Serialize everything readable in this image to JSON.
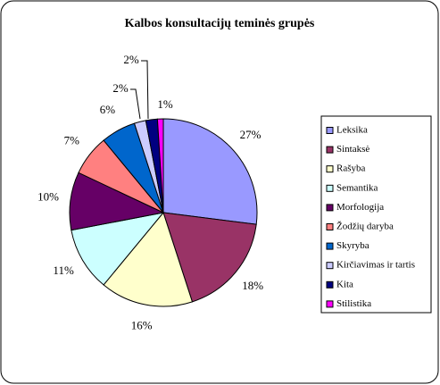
{
  "chart_data": {
    "type": "pie",
    "title": "Kalbos konsultacijų teminės grupės",
    "categories": [
      "Leksika",
      "Sintaksė",
      "Rašyba",
      "Semantika",
      "Morfologija",
      "Žodžių daryba",
      "Skyryba",
      "Kirčiavimas ir tartis",
      "Kita",
      "Stilistika"
    ],
    "values": [
      27,
      18,
      16,
      11,
      10,
      7,
      6,
      2,
      2,
      1
    ],
    "value_labels": [
      "27%",
      "18%",
      "16%",
      "11%",
      "10%",
      "7%",
      "6%",
      "2%",
      "2%",
      "1%"
    ],
    "colors": [
      "#9999ff",
      "#993366",
      "#ffffcc",
      "#ccffff",
      "#660066",
      "#ff8080",
      "#0066cc",
      "#ccccff",
      "#000080",
      "#ff00ff"
    ],
    "legend": "right"
  }
}
